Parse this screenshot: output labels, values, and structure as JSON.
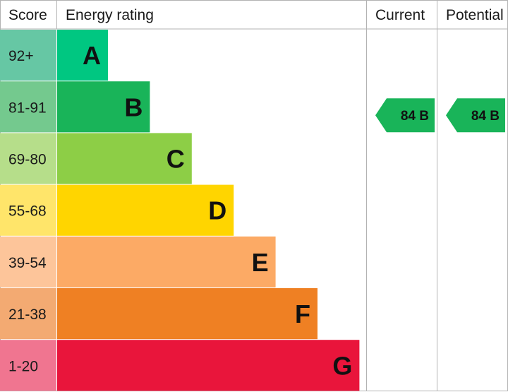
{
  "chart_data": {
    "type": "bar",
    "title": "",
    "headers": {
      "score": "Score",
      "rating": "Energy rating",
      "current": "Current",
      "potential": "Potential"
    },
    "bands": [
      {
        "letter": "A",
        "range": "92+",
        "min": 92,
        "max": 100,
        "color": "#00c781",
        "score_bg": "#66c7a4"
      },
      {
        "letter": "B",
        "range": "81-91",
        "min": 81,
        "max": 91,
        "color": "#19b459",
        "score_bg": "#74c98e"
      },
      {
        "letter": "C",
        "range": "69-80",
        "min": 69,
        "max": 80,
        "color": "#8dce46",
        "score_bg": "#b6de8a"
      },
      {
        "letter": "D",
        "range": "55-68",
        "min": 55,
        "max": 68,
        "color": "#ffd500",
        "score_bg": "#ffe56a"
      },
      {
        "letter": "E",
        "range": "39-54",
        "min": 39,
        "max": 54,
        "color": "#fcaa65",
        "score_bg": "#fdc59a"
      },
      {
        "letter": "F",
        "range": "21-38",
        "min": 21,
        "max": 38,
        "color": "#ef8023",
        "score_bg": "#f3aa72"
      },
      {
        "letter": "G",
        "range": "1-20",
        "min": 1,
        "max": 20,
        "color": "#e9153b",
        "score_bg": "#f07590"
      }
    ],
    "current": {
      "value": 84,
      "band": "B",
      "label": "84 B",
      "color": "#19b459"
    },
    "potential": {
      "value": 84,
      "band": "B",
      "label": "84 B",
      "color": "#19b459"
    }
  }
}
